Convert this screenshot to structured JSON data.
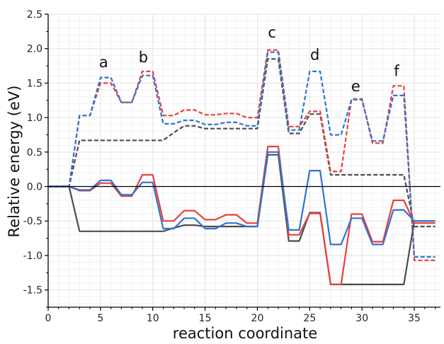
{
  "chart_data": {
    "type": "line",
    "xlabel": "reaction coordinate",
    "ylabel": "Relative energy (eV)",
    "xlim": [
      0,
      37.5
    ],
    "ylim": [
      -1.75,
      2.5
    ],
    "x_ticks": [
      "0",
      "5",
      "10",
      "15",
      "20",
      "25",
      "30",
      "35"
    ],
    "y_ticks": [
      "-1.5",
      "-1.0",
      "-0.5",
      "0.0",
      "0.5",
      "1.0",
      "1.5",
      "2.0",
      "2.5"
    ],
    "grid": true,
    "zero_line": true,
    "annotations": [
      {
        "text": "a",
        "x": 5.3,
        "y": 1.73
      },
      {
        "text": "b",
        "x": 9.1,
        "y": 1.8
      },
      {
        "text": "c",
        "x": 21.4,
        "y": 2.16
      },
      {
        "text": "d",
        "x": 25.5,
        "y": 1.84
      },
      {
        "text": "e",
        "x": 29.4,
        "y": 1.38
      },
      {
        "text": "f",
        "x": 33.3,
        "y": 1.6
      }
    ],
    "series": [
      {
        "color": "#4d4d4d",
        "dash": "dashed",
        "x": [
          0,
          2,
          3,
          11,
          12,
          13,
          14,
          15,
          16,
          17,
          18,
          19,
          20,
          21,
          22,
          23,
          24,
          25,
          26,
          27,
          28,
          29,
          30,
          31,
          32,
          33,
          34,
          35,
          36,
          37
        ],
        "y": [
          0,
          0,
          0.67,
          0.67,
          0.78,
          0.88,
          0.88,
          0.84,
          0.84,
          0.84,
          0.84,
          0.84,
          0.84,
          1.85,
          1.85,
          0.77,
          0.77,
          1.05,
          1.05,
          0.17,
          0.17,
          0.17,
          0.17,
          0.17,
          0.17,
          0.17,
          0.17,
          -0.58,
          -0.58,
          -0.58
        ]
      },
      {
        "color": "#e8403e",
        "dash": "dashed",
        "x": [
          0,
          2,
          3,
          4,
          5,
          6,
          7,
          8,
          9,
          10,
          11,
          12,
          13,
          14,
          15,
          16,
          17,
          18,
          19,
          20,
          21,
          22,
          23,
          24,
          25,
          26,
          27,
          28,
          29,
          30,
          31,
          32,
          33,
          34,
          35,
          36,
          37
        ],
        "y": [
          0,
          0,
          1.03,
          1.03,
          1.5,
          1.5,
          1.22,
          1.22,
          1.67,
          1.67,
          1.03,
          1.03,
          1.11,
          1.11,
          1.04,
          1.04,
          1.06,
          1.06,
          1.0,
          1.0,
          1.98,
          1.98,
          0.87,
          0.87,
          1.09,
          1.09,
          0.22,
          0.22,
          1.27,
          1.27,
          0.63,
          0.63,
          1.46,
          1.46,
          -1.07,
          -1.07,
          -1.07
        ]
      },
      {
        "color": "#2f74d0",
        "dash": "dashed",
        "x": [
          0,
          2,
          3,
          4,
          5,
          6,
          7,
          8,
          9,
          10,
          11,
          12,
          13,
          14,
          15,
          16,
          17,
          18,
          19,
          20,
          21,
          22,
          23,
          24,
          25,
          26,
          27,
          28,
          29,
          30,
          31,
          32,
          33,
          34,
          35,
          36,
          37
        ],
        "y": [
          0,
          0,
          1.03,
          1.03,
          1.58,
          1.58,
          1.22,
          1.22,
          1.61,
          1.61,
          0.91,
          0.91,
          0.96,
          0.96,
          0.9,
          0.9,
          0.93,
          0.93,
          0.88,
          0.88,
          1.95,
          1.95,
          0.82,
          0.82,
          1.67,
          1.67,
          0.75,
          0.75,
          1.26,
          1.26,
          0.66,
          0.66,
          1.32,
          1.32,
          -1.02,
          -1.02,
          -1.02
        ]
      },
      {
        "color": "#4d4d4d",
        "dash": "solid",
        "x": [
          0,
          2,
          3,
          11,
          12,
          13,
          14,
          15,
          16,
          17,
          18,
          19,
          20,
          21,
          22,
          23,
          24,
          25,
          26,
          27,
          28,
          29,
          30,
          31,
          32,
          33,
          34,
          35,
          36,
          37
        ],
        "y": [
          0,
          0,
          -0.65,
          -0.65,
          -0.6,
          -0.56,
          -0.56,
          -0.58,
          -0.58,
          -0.58,
          -0.58,
          -0.58,
          -0.58,
          0.46,
          0.46,
          -0.79,
          -0.79,
          -0.38,
          -0.38,
          -1.42,
          -1.42,
          -1.42,
          -1.42,
          -1.42,
          -1.42,
          -1.42,
          -1.42,
          -0.5,
          -0.5,
          -0.5
        ]
      },
      {
        "color": "#e8403e",
        "dash": "solid",
        "x": [
          0,
          2,
          3,
          4,
          5,
          6,
          7,
          8,
          9,
          10,
          11,
          12,
          13,
          14,
          15,
          16,
          17,
          18,
          19,
          20,
          21,
          22,
          23,
          24,
          25,
          26,
          27,
          28,
          29,
          30,
          31,
          32,
          33,
          34,
          35,
          36,
          37
        ],
        "y": [
          0,
          0,
          -0.06,
          -0.06,
          0.05,
          0.05,
          -0.14,
          -0.14,
          0.17,
          0.17,
          -0.5,
          -0.5,
          -0.35,
          -0.35,
          -0.48,
          -0.48,
          -0.41,
          -0.41,
          -0.53,
          -0.53,
          0.58,
          0.58,
          -0.7,
          -0.7,
          -0.39,
          -0.39,
          -1.42,
          -1.42,
          -0.4,
          -0.4,
          -0.8,
          -0.8,
          -0.2,
          -0.2,
          -0.53,
          -0.53,
          -0.53
        ]
      },
      {
        "color": "#2f74d0",
        "dash": "solid",
        "x": [
          0,
          2,
          3,
          4,
          5,
          6,
          7,
          8,
          9,
          10,
          11,
          12,
          13,
          14,
          15,
          16,
          17,
          18,
          19,
          20,
          21,
          22,
          23,
          24,
          25,
          26,
          27,
          28,
          29,
          30,
          31,
          32,
          33,
          34,
          35,
          36,
          37
        ],
        "y": [
          0,
          0,
          -0.05,
          -0.05,
          0.09,
          0.09,
          -0.12,
          -0.12,
          0.06,
          0.06,
          -0.61,
          -0.61,
          -0.46,
          -0.46,
          -0.61,
          -0.61,
          -0.53,
          -0.53,
          -0.58,
          -0.58,
          0.5,
          0.5,
          -0.63,
          -0.63,
          0.23,
          0.23,
          -0.84,
          -0.84,
          -0.46,
          -0.46,
          -0.84,
          -0.84,
          -0.34,
          -0.34,
          -0.5,
          -0.5,
          -0.5
        ]
      }
    ]
  }
}
